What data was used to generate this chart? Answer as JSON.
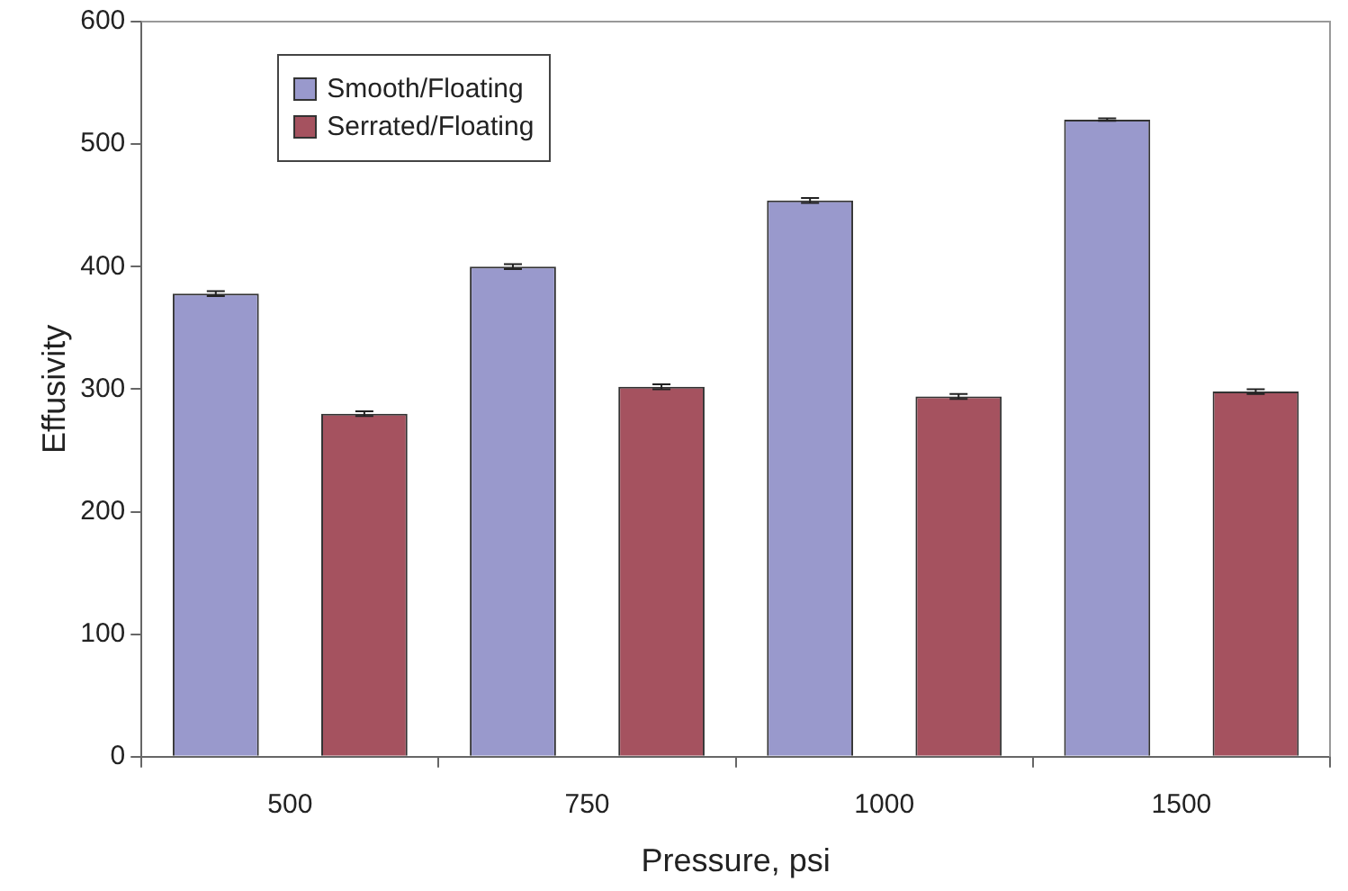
{
  "chart_data": {
    "type": "bar",
    "xlabel": "Pressure, psi",
    "ylabel": "Effusivity",
    "categories": [
      "500",
      "750",
      "1000",
      "1500"
    ],
    "series": [
      {
        "name": "Smooth/Floating",
        "color": "#9999cc",
        "values": [
          378,
          400,
          454,
          520
        ],
        "errors": [
          2,
          2,
          2,
          1
        ]
      },
      {
        "name": "Serrated/Floating",
        "color": "#a5525f",
        "values": [
          280,
          302,
          294,
          298
        ],
        "errors": [
          2,
          2,
          2,
          2
        ]
      }
    ],
    "ylim": [
      0,
      600
    ],
    "yticks": [
      0,
      100,
      200,
      300,
      400,
      500,
      600
    ],
    "grid": false,
    "legend": "top left"
  }
}
